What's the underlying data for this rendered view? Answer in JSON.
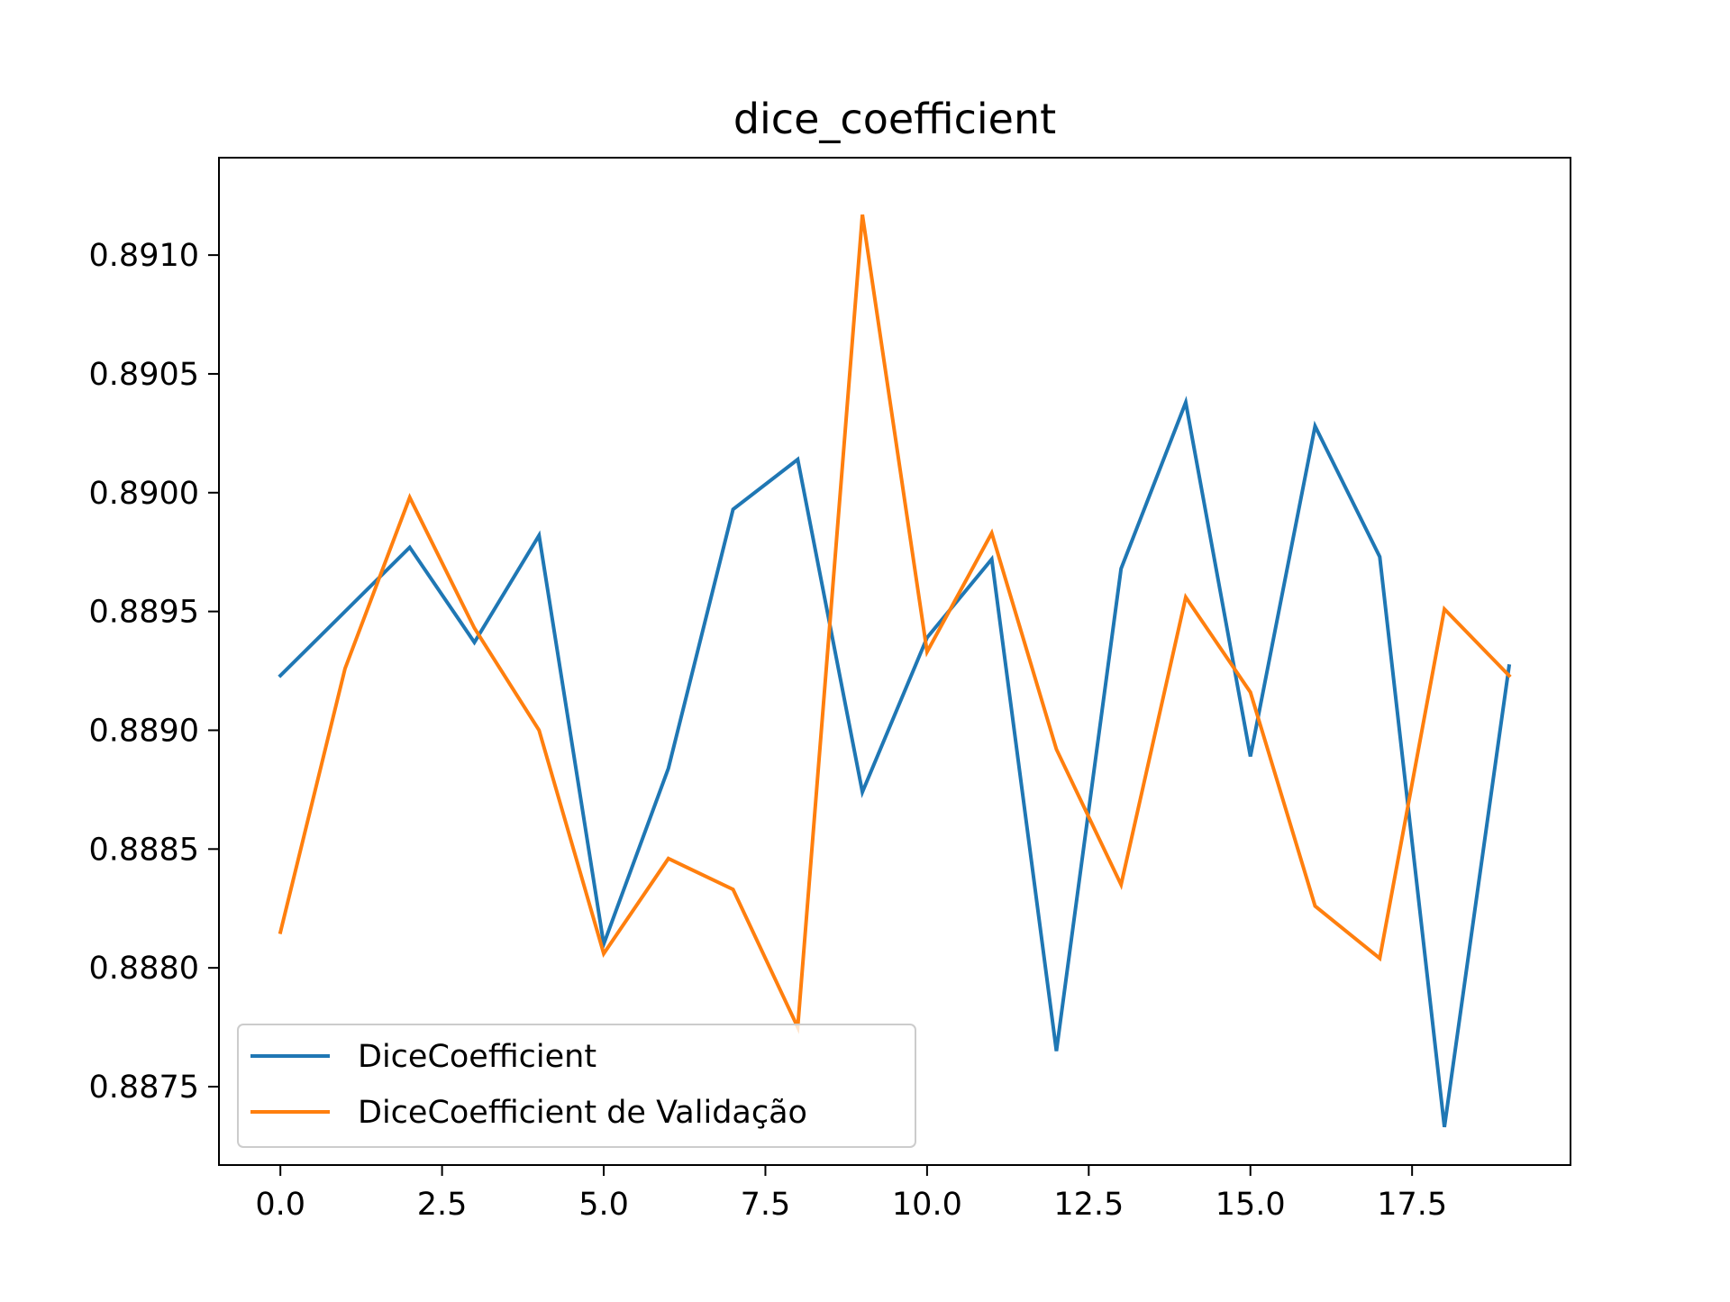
{
  "chart_data": {
    "type": "line",
    "title": "dice_coefficient",
    "xlabel": "",
    "ylabel": "",
    "xlim": [
      -0.95,
      19.95
    ],
    "ylim": [
      0.88717,
      0.89141
    ],
    "xticks": [
      0.0,
      2.5,
      5.0,
      7.5,
      10.0,
      12.5,
      15.0,
      17.5
    ],
    "xtick_labels": [
      "0.0",
      "2.5",
      "5.0",
      "7.5",
      "10.0",
      "12.5",
      "15.0",
      "17.5"
    ],
    "yticks": [
      0.8875,
      0.888,
      0.8885,
      0.889,
      0.8895,
      0.89,
      0.8905,
      0.891
    ],
    "ytick_labels": [
      "0.8875",
      "0.8880",
      "0.8885",
      "0.8890",
      "0.8895",
      "0.8900",
      "0.8905",
      "0.8910"
    ],
    "grid": false,
    "legend_position": "lower-left",
    "x": [
      0,
      1,
      2,
      3,
      4,
      5,
      6,
      7,
      8,
      9,
      10,
      11,
      12,
      13,
      14,
      15,
      16,
      17,
      18,
      19
    ],
    "series": [
      {
        "name": "DiceCoefficient",
        "color": "#1f77b4",
        "values": [
          0.88923,
          0.8895,
          0.88977,
          0.88937,
          0.88982,
          0.8881,
          0.88884,
          0.88993,
          0.89014,
          0.88874,
          0.88939,
          0.88972,
          0.88765,
          0.88968,
          0.89038,
          0.88889,
          0.89028,
          0.88973,
          0.88733,
          0.88927
        ]
      },
      {
        "name": "DiceCoefficient de Validação",
        "color": "#ff7f0e",
        "values": [
          0.88815,
          0.88926,
          0.88998,
          0.88943,
          0.889,
          0.88806,
          0.88846,
          0.88833,
          0.88775,
          0.89117,
          0.88933,
          0.88983,
          0.88892,
          0.88835,
          0.88956,
          0.88916,
          0.88826,
          0.88804,
          0.88951,
          0.88923
        ]
      }
    ]
  }
}
